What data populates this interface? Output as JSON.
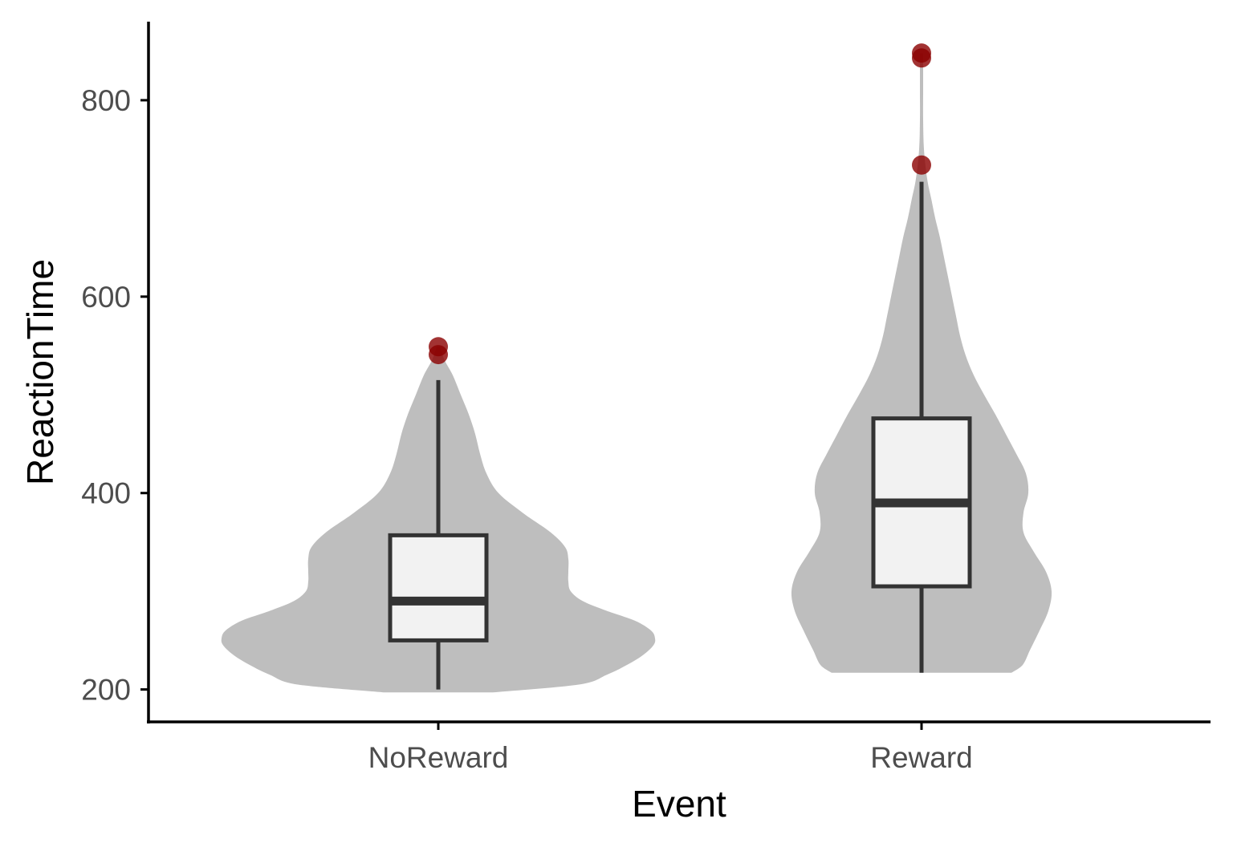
{
  "chart_data": {
    "type": "violin-box",
    "xlabel": "Event",
    "ylabel": "ReactionTime",
    "categories": [
      "NoReward",
      "Reward"
    ],
    "yticks": [
      200,
      400,
      600,
      800
    ],
    "ylim": [
      167,
      880
    ],
    "grid": false,
    "legend": "none",
    "colors": {
      "violin": "#bebebe",
      "box_fill": "#f2f2f2",
      "box_stroke": "#333333",
      "outlier": "#8b0000"
    },
    "groups": [
      {
        "category": "NoReward",
        "box": {
          "whisker_low": 200,
          "q1": 250,
          "median": 290,
          "q3": 357,
          "whisker_high": 515
        },
        "outliers": [
          541,
          549
        ],
        "violin": {
          "y": [
            197,
            205,
            215,
            225,
            235,
            245,
            252,
            260,
            270,
            280,
            290,
            300,
            310,
            320,
            333,
            345,
            360,
            380,
            400,
            420,
            440,
            460,
            480,
            500,
            520,
            535,
            549
          ],
          "halfwidth": [
            68,
            175,
            210,
            235,
            255,
            268,
            270,
            265,
            245,
            210,
            180,
            165,
            162,
            162,
            162,
            158,
            140,
            105,
            75,
            60,
            52,
            46,
            38,
            28,
            18,
            8,
            2
          ]
        }
      },
      {
        "category": "Reward",
        "box": {
          "whisker_low": 217,
          "q1": 305,
          "median": 390,
          "q3": 476,
          "whisker_high": 717
        },
        "outliers": [
          734,
          843,
          848
        ],
        "violin": {
          "y": [
            217,
            225,
            240,
            260,
            280,
            300,
            320,
            340,
            360,
            380,
            400,
            420,
            440,
            460,
            480,
            500,
            520,
            540,
            560,
            580,
            600,
            620,
            640,
            660,
            680,
            700,
            720,
            750,
            780,
            810,
            848
          ],
          "halfwidth": [
            112,
            126,
            135,
            147,
            158,
            162,
            155,
            140,
            127,
            127,
            133,
            130,
            118,
            105,
            92,
            78,
            65,
            55,
            48,
            43,
            38,
            33,
            28,
            23,
            17,
            12,
            7,
            3,
            2,
            2,
            2
          ]
        }
      }
    ]
  }
}
